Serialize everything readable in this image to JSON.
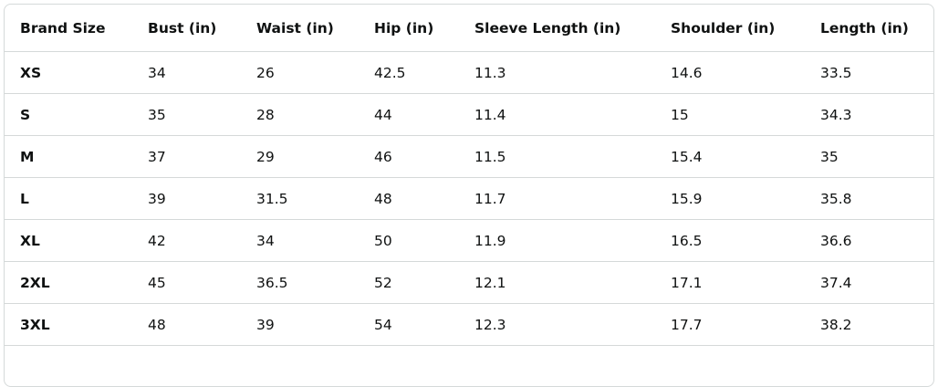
{
  "table": {
    "header": [
      "Brand Size",
      "Bust (in)",
      "Waist (in)",
      "Hip (in)",
      "Sleeve Length (in)",
      "Shoulder (in)",
      "Length (in)"
    ],
    "rows": [
      [
        "XS",
        "34",
        "26",
        "42.5",
        "11.3",
        "14.6",
        "33.5"
      ],
      [
        "S",
        "35",
        "28",
        "44",
        "11.4",
        "15",
        "34.3"
      ],
      [
        "M",
        "37",
        "29",
        "46",
        "11.5",
        "15.4",
        "35"
      ],
      [
        "L",
        "39",
        "31.5",
        "48",
        "11.7",
        "15.9",
        "35.8"
      ],
      [
        "XL",
        "42",
        "34",
        "50",
        "11.9",
        "16.5",
        "36.6"
      ],
      [
        "2XL",
        "45",
        "36.5",
        "52",
        "12.1",
        "17.1",
        "37.4"
      ],
      [
        "3XL",
        "48",
        "39",
        "54",
        "12.3",
        "17.7",
        "38.2"
      ]
    ]
  }
}
